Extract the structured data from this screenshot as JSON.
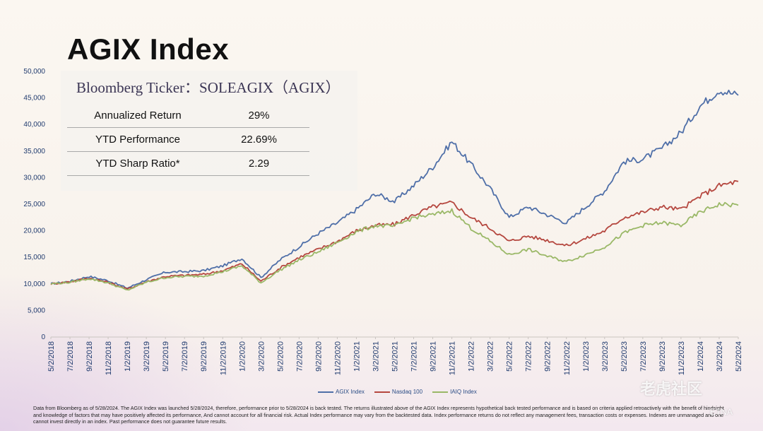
{
  "title": "AGIX Index",
  "info": {
    "ticker": "Bloomberg Ticker：SOLEAGIX（AGIX）",
    "rows": [
      {
        "label": "Annualized Return",
        "value": "29%"
      },
      {
        "label": "YTD Performance",
        "value": "22.69%"
      },
      {
        "label": "YTD Sharp Ratio*",
        "value": "2.29"
      }
    ]
  },
  "chart_data": {
    "type": "line",
    "title": "",
    "xlabel": "",
    "ylabel": "",
    "ylim": [
      0,
      50000
    ],
    "yticks": [
      "0",
      "5,000",
      "10,000",
      "15,000",
      "20,000",
      "25,000",
      "30,000",
      "35,000",
      "40,000",
      "45,000",
      "50,000"
    ],
    "xticks": [
      "5/2/2018",
      "7/2/2018",
      "9/2/2018",
      "11/2/2018",
      "1/2/2019",
      "3/2/2019",
      "5/2/2019",
      "7/2/2019",
      "9/2/2019",
      "11/2/2019",
      "1/2/2020",
      "3/2/2020",
      "5/2/2020",
      "7/2/2020",
      "9/2/2020",
      "11/2/2020",
      "1/2/2021",
      "3/2/2021",
      "5/2/2021",
      "7/2/2021",
      "9/2/2021",
      "11/2/2021",
      "1/2/2022",
      "3/2/2022",
      "5/2/2022",
      "7/2/2022",
      "9/2/2022",
      "11/2/2022",
      "1/2/2023",
      "3/2/2023",
      "5/2/2023",
      "7/2/2023",
      "9/2/2023",
      "11/2/2023",
      "1/2/2024",
      "3/2/2024",
      "5/2/2024"
    ],
    "grid": false,
    "legend_position": "bottom",
    "series": [
      {
        "name": "AGIX Index",
        "color": "#4f6fa8",
        "values": [
          10000,
          10500,
          11400,
          10600,
          9200,
          10800,
          12200,
          12300,
          12500,
          13400,
          14800,
          11200,
          14500,
          17000,
          19500,
          21500,
          24000,
          27000,
          25500,
          28500,
          32000,
          36800,
          32500,
          28000,
          22500,
          24500,
          23000,
          21500,
          24500,
          27500,
          33000,
          33500,
          35500,
          38500,
          43500,
          46500,
          45500
        ]
      },
      {
        "name": "Nasdaq 100",
        "color": "#b5473f",
        "values": [
          10000,
          10400,
          11100,
          10300,
          9000,
          10400,
          11400,
          11600,
          11800,
          12500,
          13800,
          10500,
          13000,
          15000,
          16500,
          18000,
          20000,
          21000,
          21200,
          23000,
          24500,
          25300,
          22500,
          20500,
          18000,
          19000,
          18200,
          17200,
          18500,
          20000,
          22500,
          23500,
          24500,
          24000,
          26500,
          28500,
          29300
        ]
      },
      {
        "name": "IAIQ Index",
        "color": "#9ab867",
        "values": [
          10000,
          10300,
          11000,
          10200,
          8800,
          10300,
          11200,
          11400,
          11500,
          12300,
          13400,
          10200,
          12600,
          14500,
          16000,
          17800,
          19800,
          21000,
          20800,
          22500,
          23000,
          23800,
          20500,
          18000,
          15500,
          16500,
          15200,
          14200,
          15500,
          17000,
          19500,
          21000,
          21500,
          21000,
          23500,
          25000,
          24800
        ]
      }
    ]
  },
  "disclaimer": "Data from Bloomberg as of 5/28/2024. The AGIX Index was launched 5/28/2024, therefore, performance prior to 5/28/2024 is back tested. The returns illustrated above of the AGIX Index represents hypothetical back tested performance and is based on criteria applied retroactively with the benefit of hindsight and knowledge of factors that may have positively affected its performance, And cannot account for all financial risk. Actual Index performance may vary from the backtested data. Index performance returns do not reflect any management fees, transaction costs or expenses. Indexes are unmanaged and one cannot invest directly in an index. Past performance does not guarantee future results.",
  "watermark": {
    "main": "老虎社区",
    "sub": "ETNA"
  }
}
